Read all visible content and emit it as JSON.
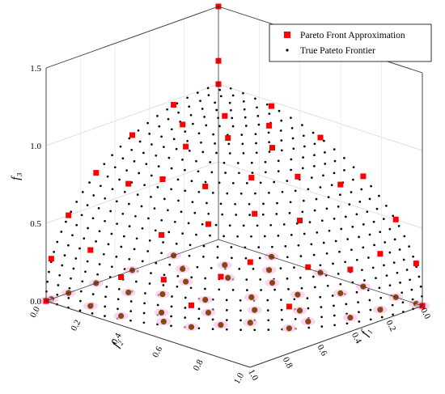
{
  "chart_data": {
    "type": "scatter",
    "projection": "3d",
    "axes": {
      "f1": {
        "label": "f₁",
        "ticks": [
          "0.0",
          "0.2",
          "0.4",
          "0.6",
          "0.8",
          "1.0"
        ],
        "range": [
          0,
          1
        ]
      },
      "f2": {
        "label": "f₂",
        "ticks": [
          "0.0",
          "0.2",
          "0.4",
          "0.6",
          "0.8",
          "1.0"
        ],
        "range": [
          0,
          1
        ]
      },
      "f3": {
        "label": "f₃",
        "ticks": [
          "0.0",
          "0.5",
          "1.0",
          "1.5"
        ],
        "range": [
          0,
          1.5
        ]
      }
    },
    "grid": true,
    "legend": {
      "placement": "top-right",
      "entries": [
        {
          "label": "Pareto Front Approximation",
          "marker": "square",
          "color": "#ff0000"
        },
        {
          "label": "True Pateto Frontier",
          "marker": "dot",
          "color": "#000000"
        }
      ]
    },
    "series": [
      {
        "name": "Pareto Front Approximation",
        "color": "#ff0000",
        "projection_color": "#8b4513",
        "points": [
          [
            0,
            0,
            1.5
          ],
          [
            0,
            0,
            1.15
          ],
          [
            0,
            0,
            1.0
          ],
          [
            0.26,
            0,
            0.97
          ],
          [
            0.5,
            0,
            0.87
          ],
          [
            0.71,
            0,
            0.71
          ],
          [
            0.87,
            0,
            0.5
          ],
          [
            0.97,
            0,
            0.26
          ],
          [
            1.0,
            0,
            0
          ],
          [
            0,
            0.26,
            0.97
          ],
          [
            0,
            0.5,
            0.87
          ],
          [
            0,
            0.71,
            0.71
          ],
          [
            0,
            0.87,
            0.5
          ],
          [
            0,
            0.97,
            0.26
          ],
          [
            0,
            1.0,
            0
          ],
          [
            0.2,
            0.2,
            0.96
          ],
          [
            0.3,
            0.3,
            0.9
          ],
          [
            0.22,
            0.45,
            0.87
          ],
          [
            0.45,
            0.22,
            0.87
          ],
          [
            0.5,
            0.4,
            0.77
          ],
          [
            0.4,
            0.55,
            0.73
          ],
          [
            0.6,
            0.25,
            0.76
          ],
          [
            0.25,
            0.62,
            0.74
          ],
          [
            0.6,
            0.5,
            0.62
          ],
          [
            0.5,
            0.65,
            0.57
          ],
          [
            0.72,
            0.38,
            0.58
          ],
          [
            0.38,
            0.78,
            0.5
          ],
          [
            0.68,
            0.62,
            0.39
          ],
          [
            0.62,
            0.72,
            0.31
          ],
          [
            0.82,
            0.45,
            0.35
          ],
          [
            0.45,
            0.85,
            0.27
          ],
          [
            0.82,
            0.56,
            0.14
          ],
          [
            0.56,
            0.82,
            0.14
          ],
          [
            0.9,
            0.3,
            0.31
          ],
          [
            0.3,
            0.92,
            0.25
          ],
          [
            0.15,
            0.7,
            0.7
          ],
          [
            0.7,
            0.12,
            0.7
          ],
          [
            0.15,
            0.92,
            0.36
          ],
          [
            0.92,
            0.15,
            0.36
          ],
          [
            0.35,
            0.12,
            0.93
          ],
          [
            0.12,
            0.35,
            0.93
          ]
        ]
      },
      {
        "name": "True Pateto Frontier",
        "color": "#000000",
        "surface": "f1^2 + f2^2 + f3^2 = 1"
      }
    ]
  }
}
